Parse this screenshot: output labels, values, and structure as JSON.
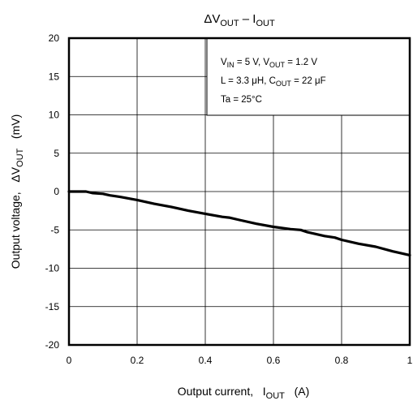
{
  "chart_data": {
    "type": "line",
    "title": {
      "main": "ΔV",
      "sub1": "OUT",
      "mid": " – I",
      "sub2": "OUT"
    },
    "xlabel": {
      "text": "Output current,   I",
      "sub": "OUT",
      "unit": "   (A)"
    },
    "ylabel": {
      "text": "Output voltage,   ΔV",
      "sub": "OUT",
      "unit": "   (mV)"
    },
    "xlim": [
      0,
      1
    ],
    "ylim": [
      -20,
      20
    ],
    "xticks": [
      0,
      0.2,
      0.4,
      0.6,
      0.8,
      1
    ],
    "xtick_labels": [
      "0",
      "0.2",
      "0.4",
      "0.6",
      "0.8",
      "1"
    ],
    "yticks": [
      20,
      15,
      10,
      5,
      0,
      -5,
      -10,
      -15,
      -20
    ],
    "ytick_labels": [
      "20",
      "15",
      "10",
      "5",
      "0",
      "-5",
      "-10",
      "-15",
      "-20"
    ],
    "grid": true,
    "annotation": {
      "line1": [
        {
          "t": "V"
        },
        {
          "t": "IN",
          "sub": true
        },
        {
          "t": " = 5 V, V"
        },
        {
          "t": "OUT",
          "sub": true
        },
        {
          "t": " = 1.2 V"
        }
      ],
      "line2": [
        {
          "t": "L = 3.3 μH, C"
        },
        {
          "t": "OUT",
          "sub": true
        },
        {
          "t": " = 22 μF"
        }
      ],
      "line3": [
        {
          "t": "Ta = 25°C"
        }
      ]
    },
    "series": [
      {
        "x": [
          0,
          0.05,
          0.07,
          0.1,
          0.12,
          0.15,
          0.2,
          0.25,
          0.3,
          0.35,
          0.4,
          0.45,
          0.47,
          0.5,
          0.55,
          0.6,
          0.65,
          0.68,
          0.7,
          0.75,
          0.78,
          0.8,
          0.85,
          0.9,
          0.95,
          0.97,
          1.0
        ],
        "y": [
          0,
          0,
          -0.2,
          -0.3,
          -0.5,
          -0.7,
          -1.1,
          -1.6,
          -2.0,
          -2.5,
          -2.9,
          -3.3,
          -3.4,
          -3.7,
          -4.2,
          -4.6,
          -4.9,
          -5.0,
          -5.3,
          -5.8,
          -6.0,
          -6.3,
          -6.8,
          -7.2,
          -7.8,
          -8.0,
          -8.3
        ],
        "color": "#000000"
      }
    ]
  }
}
